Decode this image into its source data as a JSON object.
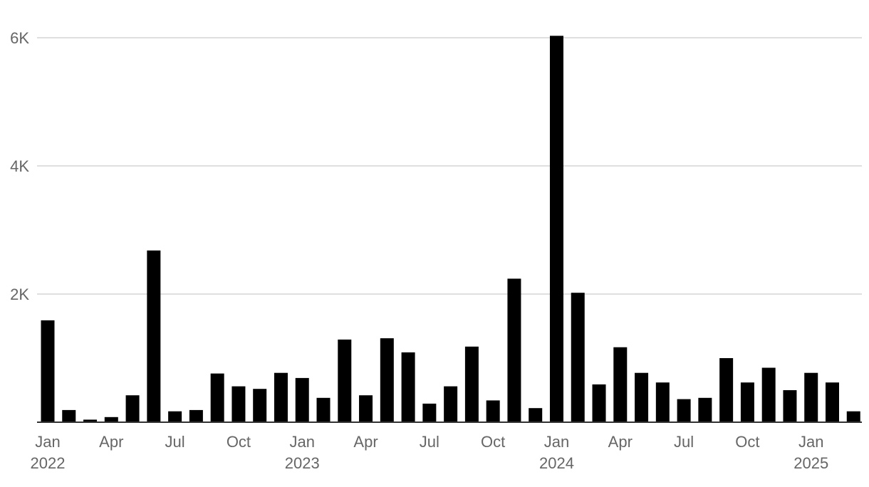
{
  "chart_data": {
    "type": "bar",
    "title": "",
    "xlabel": "",
    "ylabel": "",
    "ylim": [
      0,
      6000
    ],
    "grid": true,
    "bar_color": "#000000",
    "grid_color": "#cccccc",
    "axis_color": "#333333",
    "tick_color": "#666666",
    "y_ticks": [
      {
        "value": 2000,
        "label": "2K"
      },
      {
        "value": 4000,
        "label": "4K"
      },
      {
        "value": 6000,
        "label": "6K"
      }
    ],
    "x_ticks": [
      {
        "month": "2022-01",
        "label": "Jan",
        "year": "2022"
      },
      {
        "month": "2022-04",
        "label": "Apr",
        "year": ""
      },
      {
        "month": "2022-07",
        "label": "Jul",
        "year": ""
      },
      {
        "month": "2022-10",
        "label": "Oct",
        "year": ""
      },
      {
        "month": "2023-01",
        "label": "Jan",
        "year": "2023"
      },
      {
        "month": "2023-04",
        "label": "Apr",
        "year": ""
      },
      {
        "month": "2023-07",
        "label": "Jul",
        "year": ""
      },
      {
        "month": "2023-10",
        "label": "Oct",
        "year": ""
      },
      {
        "month": "2024-01",
        "label": "Jan",
        "year": "2024"
      },
      {
        "month": "2024-04",
        "label": "Apr",
        "year": ""
      },
      {
        "month": "2024-07",
        "label": "Jul",
        "year": ""
      },
      {
        "month": "2024-10",
        "label": "Oct",
        "year": ""
      },
      {
        "month": "2025-01",
        "label": "Jan",
        "year": "2025"
      }
    ],
    "categories": [
      "2022-01",
      "2022-02",
      "2022-03",
      "2022-04",
      "2022-05",
      "2022-06",
      "2022-07",
      "2022-08",
      "2022-09",
      "2022-10",
      "2022-11",
      "2022-12",
      "2023-01",
      "2023-02",
      "2023-03",
      "2023-04",
      "2023-05",
      "2023-06",
      "2023-07",
      "2023-08",
      "2023-09",
      "2023-10",
      "2023-11",
      "2023-12",
      "2024-01",
      "2024-02",
      "2024-03",
      "2024-04",
      "2024-05",
      "2024-06",
      "2024-07",
      "2024-08",
      "2024-09",
      "2024-10",
      "2024-11",
      "2024-12",
      "2025-01",
      "2025-02",
      "2025-03"
    ],
    "values": [
      1590,
      190,
      40,
      80,
      420,
      2680,
      170,
      190,
      760,
      560,
      520,
      770,
      690,
      380,
      1290,
      420,
      1310,
      1090,
      290,
      560,
      1180,
      340,
      2240,
      220,
      6030,
      2020,
      590,
      1170,
      770,
      620,
      360,
      380,
      1000,
      620,
      850,
      500,
      770,
      620,
      170
    ]
  }
}
